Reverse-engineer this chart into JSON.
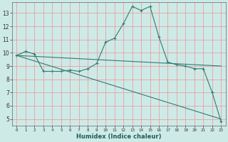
{
  "title": "",
  "xlabel": "Humidex (Indice chaleur)",
  "ylabel": "",
  "bg_color": "#ceeae7",
  "grid_color": "#e8a0a0",
  "line_color": "#2e7d72",
  "xlim": [
    -0.5,
    23.5
  ],
  "ylim": [
    4.5,
    13.8
  ],
  "yticks": [
    5,
    6,
    7,
    8,
    9,
    10,
    11,
    12,
    13
  ],
  "xticks": [
    0,
    1,
    2,
    3,
    4,
    5,
    6,
    7,
    8,
    9,
    10,
    11,
    12,
    13,
    14,
    15,
    16,
    17,
    18,
    19,
    20,
    21,
    22,
    23
  ],
  "line1_x": [
    0,
    1,
    2,
    3,
    4,
    5,
    6,
    7,
    8,
    9,
    10,
    11,
    12,
    13,
    14,
    15,
    16,
    17,
    18,
    19,
    20,
    21,
    22,
    23
  ],
  "line1_y": [
    9.8,
    10.1,
    9.9,
    8.6,
    8.6,
    8.6,
    8.7,
    8.6,
    8.8,
    9.2,
    10.8,
    11.1,
    12.2,
    13.5,
    13.2,
    13.5,
    11.2,
    9.3,
    9.1,
    9.0,
    8.8,
    8.8,
    7.0,
    4.8
  ],
  "line2_x": [
    0,
    23
  ],
  "line2_y": [
    9.8,
    9.0
  ],
  "line3_x": [
    0,
    23
  ],
  "line3_y": [
    9.8,
    5.0
  ]
}
